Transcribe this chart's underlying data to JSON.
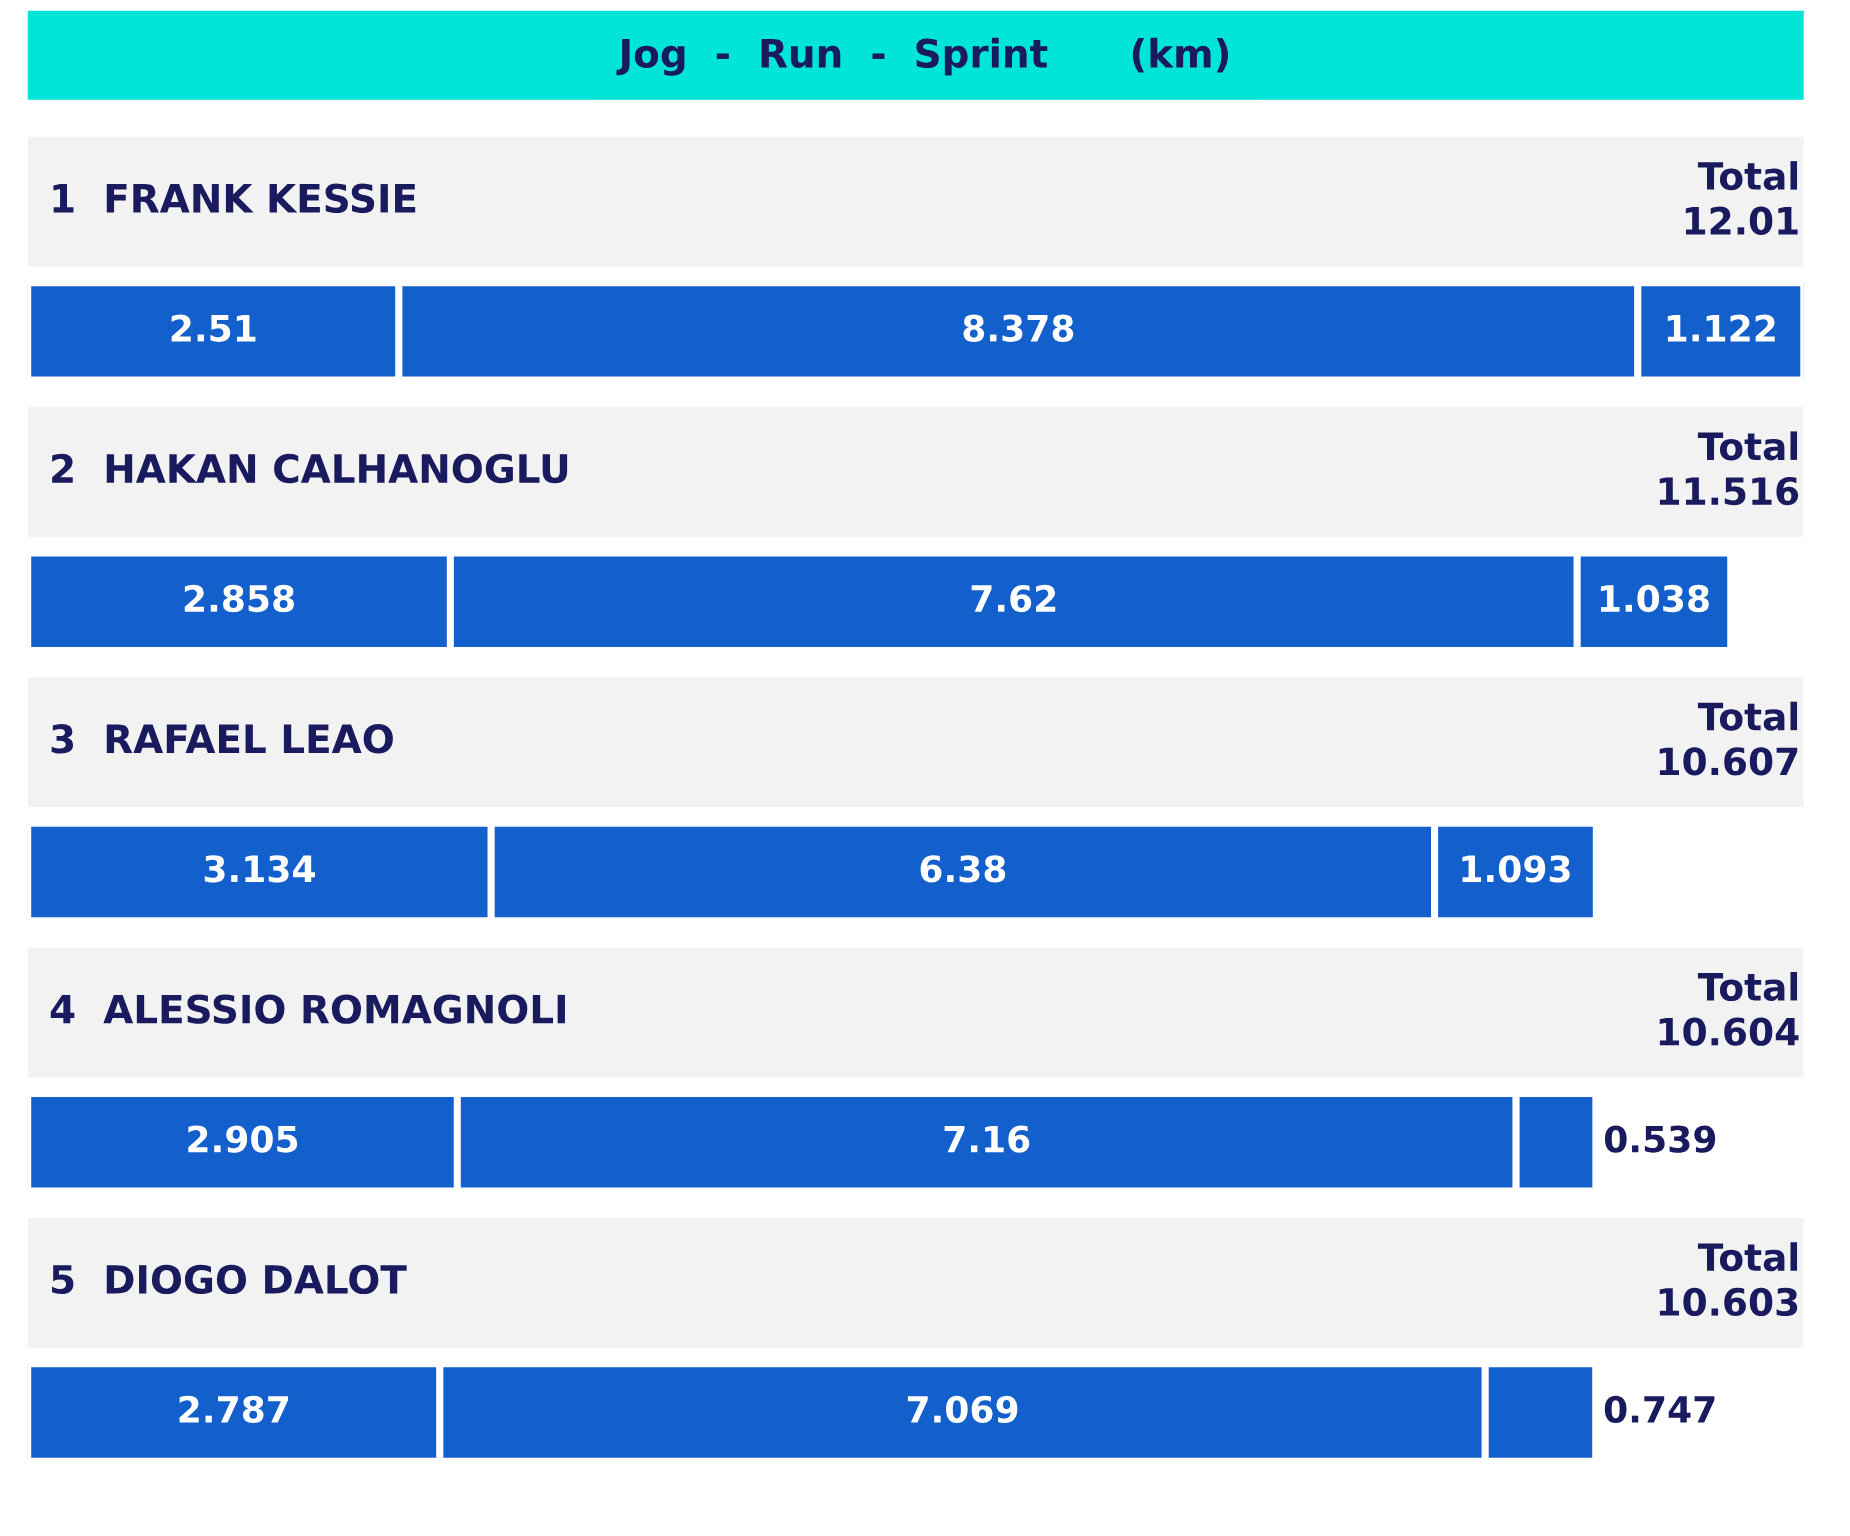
{
  "chart_data": {
    "type": "bar",
    "orientation": "horizontal",
    "stacked": true,
    "title": "Jog  -  Run  -  Sprint      (km)",
    "categories": [
      "1  FRANK KESSIE",
      "2  HAKAN CALHANOGLU",
      "3  RAFAEL LEAO",
      "4  ALESSIO ROMAGNOLI",
      "5  DIOGO DALOT"
    ],
    "series": [
      {
        "color": "#135fcb",
        "values": [
          2.51,
          2.858,
          3.134,
          2.905,
          2.787
        ]
      },
      {
        "color": "#135fcb",
        "values": [
          8.378,
          7.62,
          6.38,
          7.16,
          7.069
        ]
      },
      {
        "color": "#135fcb",
        "values": [
          1.122,
          1.038,
          1.093,
          0.539,
          0.747
        ]
      }
    ],
    "totals": [
      "Total\n12.01",
      "Total\n11.516",
      "Total\n10.607",
      "Total\n10.604",
      "Total\n10.603"
    ],
    "data_labels": true
  }
}
